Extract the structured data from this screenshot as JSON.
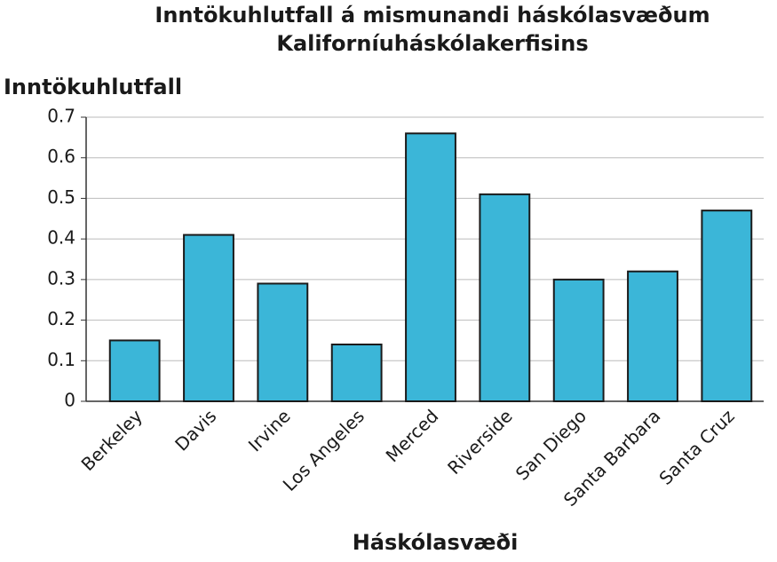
{
  "chart_data": {
    "type": "bar",
    "title": [
      "Inntökuhlutfall á mismunandi háskólasvæðum",
      "Kaliforníuháskólakerfisins"
    ],
    "y_label": "Inntökuhlutfall",
    "x_label": "Háskólasvæði",
    "categories": [
      "Berkeley",
      "Davis",
      "Irvine",
      "Los Angeles",
      "Merced",
      "Riverside",
      "San Diego",
      "Santa Barbara",
      "Santa Cruz"
    ],
    "values": [
      0.15,
      0.41,
      0.29,
      0.14,
      0.66,
      0.51,
      0.3,
      0.32,
      0.47
    ],
    "color": "#3bb6d8",
    "ylim": [
      0,
      0.7
    ],
    "yticks": [
      0,
      0.1,
      0.2,
      0.3,
      0.4,
      0.5,
      0.6,
      0.7
    ],
    "grid": true
  }
}
